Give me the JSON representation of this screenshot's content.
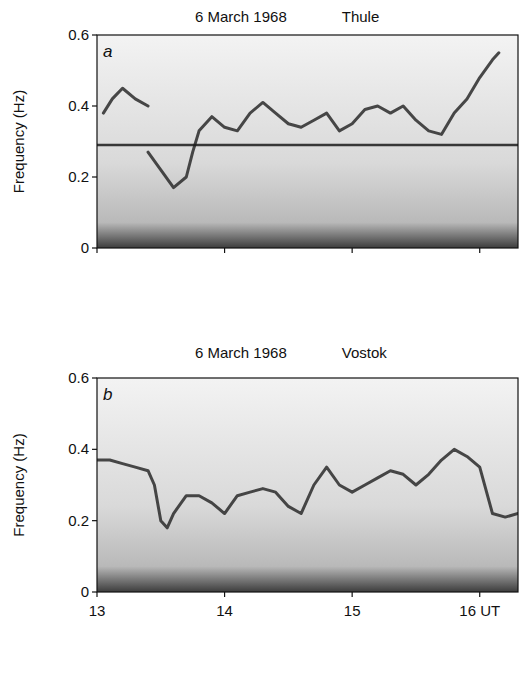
{
  "chart_data": [
    {
      "type": "line",
      "title": "6 March 1968",
      "subtitle": "Thule",
      "annotation": "a",
      "ylabel": "Frequency (Hz)",
      "xlim": [
        13,
        16.3
      ],
      "xticks": [
        13,
        14,
        15,
        16
      ],
      "ylim": [
        0,
        0.6
      ],
      "yticks": [
        0,
        0.2,
        0.4,
        0.6
      ],
      "tick_labels": "y",
      "grid": false,
      "series": [
        {
          "color": "#2a2a2a",
          "line_style": "solid",
          "x": [
            13.05,
            13.12,
            13.2,
            13.3,
            13.4,
            13.42,
            13.4,
            13.5,
            13.6,
            13.7,
            13.75,
            13.8,
            13.9,
            14.0,
            14.1,
            14.2,
            14.3,
            14.4,
            14.5,
            14.6,
            14.7,
            14.8,
            14.9,
            15.0,
            15.1,
            15.2,
            15.3,
            15.4,
            15.5,
            15.6,
            15.7,
            15.8,
            15.9,
            16.0,
            16.1,
            16.15
          ],
          "values": [
            0.38,
            0.42,
            0.45,
            0.42,
            0.4,
            null,
            0.27,
            0.22,
            0.17,
            0.2,
            0.27,
            0.33,
            0.37,
            0.34,
            0.33,
            0.38,
            0.41,
            0.38,
            0.35,
            0.34,
            0.36,
            0.38,
            0.33,
            0.35,
            0.39,
            0.4,
            0.38,
            0.4,
            0.36,
            0.33,
            0.32,
            0.38,
            0.42,
            0.48,
            0.53,
            0.55
          ]
        },
        {
          "color": "#1a1a1a",
          "line_style": "solid",
          "x": [
            13,
            16.3
          ],
          "values": [
            0.29,
            0.29
          ]
        }
      ]
    },
    {
      "type": "line",
      "title": "6 March 1968",
      "subtitle": "Vostok",
      "annotation": "b",
      "ylabel": "Frequency (Hz)",
      "xlim": [
        13,
        16.3
      ],
      "xticks": [
        13,
        14,
        15,
        {
          "value": 16,
          "label": "16 UT"
        }
      ],
      "ylim": [
        0,
        0.6
      ],
      "yticks": [
        0,
        0.2,
        0.4,
        0.6
      ],
      "tick_labels": true,
      "grid": false,
      "series": [
        {
          "color": "#2a2a2a",
          "line_style": "solid",
          "x": [
            13.0,
            13.1,
            13.2,
            13.3,
            13.4,
            13.45,
            13.5,
            13.55,
            13.6,
            13.7,
            13.8,
            13.9,
            14.0,
            14.1,
            14.2,
            14.3,
            14.4,
            14.5,
            14.6,
            14.7,
            14.8,
            14.9,
            15.0,
            15.1,
            15.2,
            15.3,
            15.4,
            15.5,
            15.6,
            15.7,
            15.8,
            15.9,
            16.0,
            16.1,
            16.2,
            16.3
          ],
          "values": [
            0.37,
            0.37,
            0.36,
            0.35,
            0.34,
            0.3,
            0.2,
            0.18,
            0.22,
            0.27,
            0.27,
            0.25,
            0.22,
            0.27,
            0.28,
            0.29,
            0.28,
            0.24,
            0.22,
            0.3,
            0.35,
            0.3,
            0.28,
            0.3,
            0.32,
            0.34,
            0.33,
            0.3,
            0.33,
            0.37,
            0.4,
            0.38,
            0.35,
            0.22,
            0.21,
            0.22
          ]
        }
      ]
    }
  ]
}
